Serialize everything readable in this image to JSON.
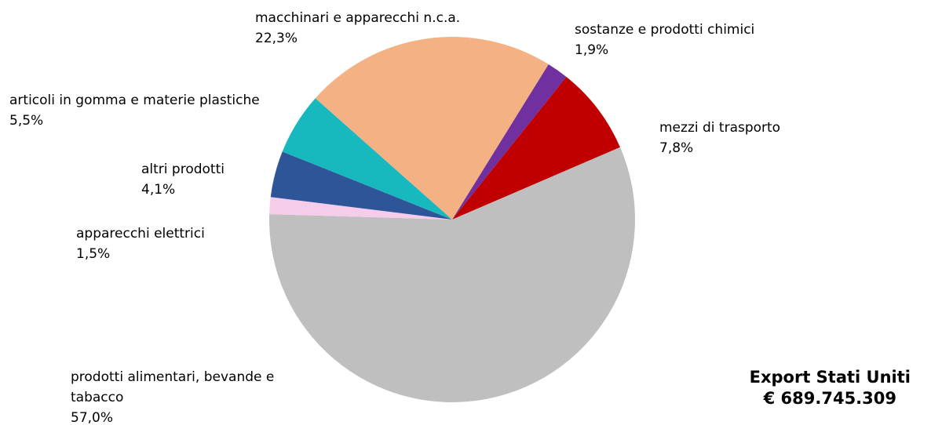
{
  "chart_data": {
    "type": "pie",
    "title": "Export Stati Uniti",
    "subtitle": "€ 689.745.309",
    "categories": [
      "sostanze e prodotti chimici",
      "mezzi di trasporto",
      "prodotti alimentari, bevande e tabacco",
      "apparecchi elettrici",
      "altri prodotti",
      "articoli in gomma e materie plastiche",
      "macchinari e apparecchi n.c.a."
    ],
    "values": [
      1.9,
      7.8,
      57.0,
      1.5,
      4.1,
      5.5,
      22.3
    ],
    "value_labels": [
      "1,9%",
      "7,8%",
      "57,0%",
      "1,5%",
      "4,1%",
      "5,5%",
      "22,3%"
    ],
    "colors": [
      "#7030a0",
      "#c00000",
      "#bfbfbf",
      "#f5cdea",
      "#2e5597",
      "#17b8be",
      "#f4b183"
    ]
  }
}
